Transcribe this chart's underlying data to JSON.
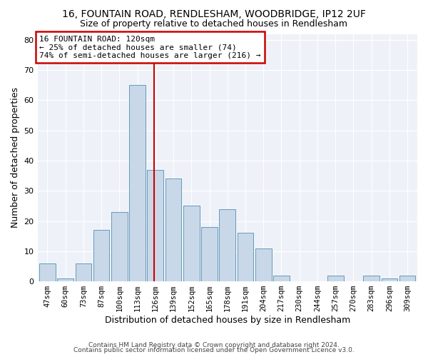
{
  "title": "16, FOUNTAIN ROAD, RENDLESHAM, WOODBRIDGE, IP12 2UF",
  "subtitle": "Size of property relative to detached houses in Rendlesham",
  "xlabel": "Distribution of detached houses by size in Rendlesham",
  "ylabel": "Number of detached properties",
  "categories": [
    "47sqm",
    "60sqm",
    "73sqm",
    "87sqm",
    "100sqm",
    "113sqm",
    "126sqm",
    "139sqm",
    "152sqm",
    "165sqm",
    "178sqm",
    "191sqm",
    "204sqm",
    "217sqm",
    "230sqm",
    "244sqm",
    "257sqm",
    "270sqm",
    "283sqm",
    "296sqm",
    "309sqm"
  ],
  "values": [
    6,
    1,
    6,
    17,
    23,
    65,
    37,
    34,
    25,
    18,
    24,
    16,
    11,
    2,
    0,
    0,
    2,
    0,
    2,
    1,
    2
  ],
  "bar_color": "#c8d8e8",
  "bar_edge_color": "#6699bb",
  "highlight_index": 6,
  "highlight_line_color": "#cc0000",
  "annotation_text_line1": "16 FOUNTAIN ROAD: 120sqm",
  "annotation_text_line2": "← 25% of detached houses are smaller (74)",
  "annotation_text_line3": "74% of semi-detached houses are larger (216) →",
  "annotation_box_edgecolor": "#cc0000",
  "annotation_box_facecolor": "white",
  "ylim": [
    0,
    82
  ],
  "yticks": [
    0,
    10,
    20,
    30,
    40,
    50,
    60,
    70,
    80
  ],
  "bg_color": "#eef2f8",
  "footer_line1": "Contains HM Land Registry data © Crown copyright and database right 2024.",
  "footer_line2": "Contains public sector information licensed under the Open Government Licence v3.0.",
  "title_fontsize": 10,
  "subtitle_fontsize": 9,
  "grid_color": "white"
}
